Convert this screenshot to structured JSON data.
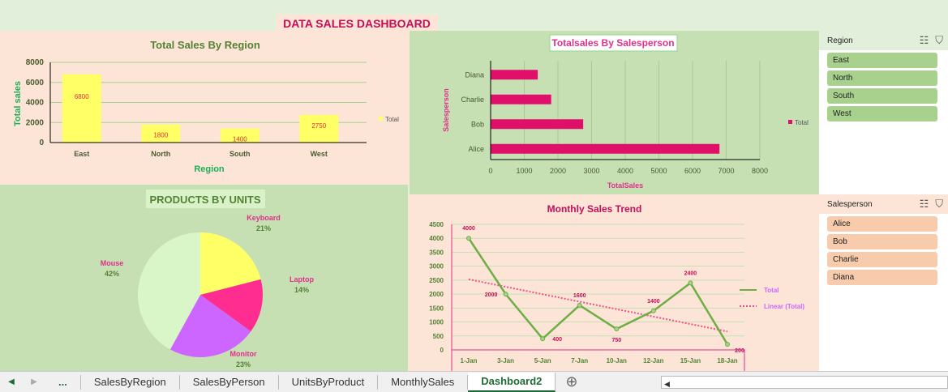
{
  "dashboard_title": "DATA SALES DASHBOARD",
  "chart_data": [
    {
      "type": "bar",
      "title": "Total Sales By Region",
      "xlabel": "Region",
      "ylabel": "Total sales",
      "categories": [
        "East",
        "North",
        "South",
        "West"
      ],
      "values": [
        6800,
        1800,
        1400,
        2750
      ],
      "ylim": [
        0,
        8000
      ],
      "yticks": [
        0,
        2000,
        4000,
        6000,
        8000
      ],
      "legend": "Total",
      "legend_position": "right",
      "grid": true,
      "color": "#ffff66",
      "label_color": "#e0303a"
    },
    {
      "type": "bar",
      "orientation": "horizontal",
      "title": "Totalsales By Salesperson",
      "xlabel": "TotalSales",
      "ylabel": "Salesperson",
      "categories": [
        "Diana",
        "Charlie",
        "Bob",
        "Alice"
      ],
      "values": [
        1400,
        1800,
        2750,
        6800
      ],
      "xlim": [
        0,
        8000
      ],
      "xticks": [
        0,
        1000,
        2000,
        3000,
        4000,
        5000,
        6000,
        7000,
        8000
      ],
      "legend": "Total",
      "legend_position": "right",
      "grid": true,
      "color": "#e0106a"
    },
    {
      "type": "pie",
      "title": "PRODUCTS BY UNITS",
      "slices": [
        {
          "label": "Keyboard",
          "percent": 21,
          "color": "#ffff66"
        },
        {
          "label": "Laptop",
          "percent": 14,
          "color": "#ff2d8f"
        },
        {
          "label": "Monitor",
          "percent": 23,
          "color": "#cc66ff"
        },
        {
          "label": "Mouse",
          "percent": 42,
          "color": "#d9f6c9"
        }
      ]
    },
    {
      "type": "line",
      "title": "Monthly Sales Trend",
      "categories": [
        "1-Jan",
        "3-Jan",
        "5-Jan",
        "7-Jan",
        "10-Jan",
        "12-Jan",
        "15-Jan",
        "18-Jan"
      ],
      "values": [
        4000,
        2000,
        400,
        1600,
        750,
        1400,
        2400,
        200
      ],
      "ylim": [
        0,
        4500
      ],
      "yticks": [
        0,
        500,
        1000,
        1500,
        2000,
        2500,
        3000,
        3500,
        4000,
        4500
      ],
      "legend": [
        "Total",
        "Linear (Total)"
      ],
      "legend_position": "right",
      "grid": true,
      "color": "#70ad47",
      "trend_color": "#f0508a"
    }
  ],
  "slicers": [
    {
      "title": "Region",
      "items": [
        "East",
        "North",
        "South",
        "West"
      ]
    },
    {
      "title": "Salesperson",
      "items": [
        "Alice",
        "Bob",
        "Charlie",
        "Diana"
      ]
    }
  ],
  "tabs": {
    "more": "...",
    "items": [
      "SalesByRegion",
      "SalesByPerson",
      "UnitsByProduct",
      "MonthlySales",
      "Dashboard2"
    ],
    "active": "Dashboard2"
  }
}
